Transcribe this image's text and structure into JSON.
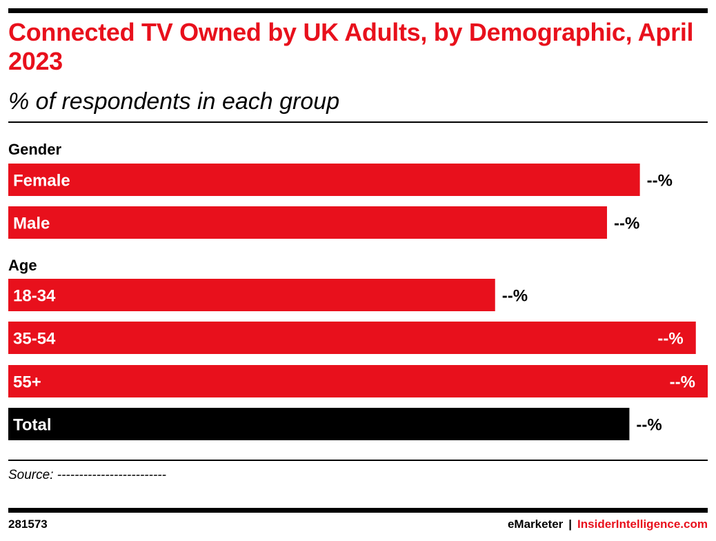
{
  "header": {
    "title": "Connected TV Owned by UK Adults, by Demographic, April 2023",
    "subtitle": "% of respondents in each group"
  },
  "chart_data": {
    "type": "bar",
    "orientation": "horizontal",
    "groups": [
      {
        "label": "Gender",
        "bars": [
          {
            "category": "Female",
            "value": 90.3,
            "value_label": "--%",
            "color": "#e8101c"
          },
          {
            "category": "Male",
            "value": 85.6,
            "value_label": "--%",
            "color": "#e8101c"
          }
        ]
      },
      {
        "label": "Age",
        "bars": [
          {
            "category": "18-34",
            "value": 69.6,
            "value_label": "--%",
            "color": "#e8101c"
          },
          {
            "category": "35-54",
            "value": 98.3,
            "value_label": "--%",
            "color": "#e8101c"
          },
          {
            "category": "55+",
            "value": 100,
            "value_label": "--%",
            "color": "#e8101c"
          }
        ]
      },
      {
        "label": "",
        "bars": [
          {
            "category": "Total",
            "value": 88.8,
            "value_label": "--%",
            "color": "#000000"
          }
        ]
      }
    ],
    "xlim": [
      0,
      100
    ],
    "grid": false,
    "legend": "none"
  },
  "source": "Source: -------------------------",
  "footer": {
    "chart_id": "281573",
    "brand": "eMarketer",
    "separator": "|",
    "site": "InsiderIntelligence.com"
  },
  "colors": {
    "accent": "#e8101c",
    "total": "#000000",
    "text": "#000000"
  }
}
